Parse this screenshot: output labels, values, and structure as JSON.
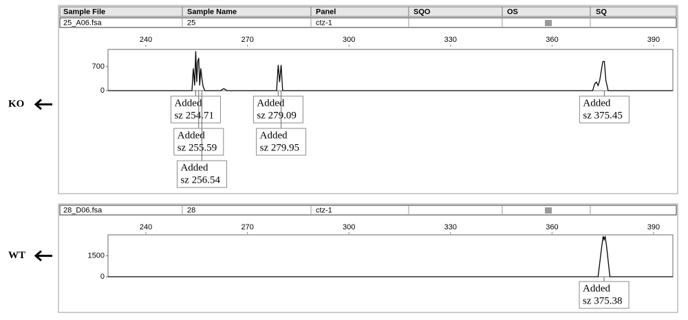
{
  "header": {
    "columns": [
      "Sample File",
      "Sample Name",
      "Panel",
      "SQO",
      "OS",
      "SQ"
    ]
  },
  "chart_data": [
    {
      "type": "line",
      "arrow_label": "KO",
      "sample_file": "25_A06.fsa",
      "sample_name": "25",
      "panel": "ctz-1",
      "xlim": [
        228.8,
        395.7
      ],
      "xticks": [
        240,
        270,
        300,
        330,
        360,
        390
      ],
      "ylim": [
        0,
        1200
      ],
      "yticks": [
        0,
        700
      ],
      "series": [
        {
          "color": "#000000",
          "x": [
            228.8,
            252,
            253.6,
            254.0,
            254.4,
            254.71,
            255.0,
            255.3,
            255.59,
            255.9,
            256.2,
            256.54,
            256.9,
            257.4,
            262,
            263,
            264,
            277.5,
            278.6,
            279.09,
            279.5,
            279.95,
            280.4,
            281.4,
            372,
            372.6,
            373.1,
            373.6,
            374.1,
            375.0,
            375.45,
            375.9,
            376.6,
            395.7
          ],
          "values": [
            0,
            0,
            0,
            650,
            150,
            1150,
            250,
            850,
            950,
            150,
            650,
            350,
            120,
            0,
            0,
            60,
            0,
            0,
            0,
            750,
            250,
            750,
            0,
            0,
            0,
            200,
            250,
            150,
            300,
            850,
            850,
            300,
            0,
            0
          ]
        }
      ],
      "annotations": [
        {
          "x": 254.71,
          "title": "Added",
          "label": "sz 254.71"
        },
        {
          "x": 255.59,
          "title": "Added",
          "label": "sz 255.59"
        },
        {
          "x": 256.54,
          "title": "Added",
          "label": "sz 256.54"
        },
        {
          "x": 279.09,
          "title": "Added",
          "label": "sz 279.09"
        },
        {
          "x": 279.95,
          "title": "Added",
          "label": "sz 279.95"
        },
        {
          "x": 375.45,
          "title": "Added",
          "label": "sz 375.45"
        }
      ]
    },
    {
      "type": "line",
      "arrow_label": "WT",
      "sample_file": "28_D06.fsa",
      "sample_name": "28",
      "panel": "ctz-1",
      "xlim": [
        228.8,
        395.7
      ],
      "xticks": [
        240,
        270,
        300,
        330,
        360,
        390
      ],
      "ylim": [
        0,
        3000
      ],
      "yticks": [
        0,
        1500
      ],
      "series": [
        {
          "color": "#000000",
          "x": [
            228.8,
            373.6,
            374.7,
            375.1,
            375.38,
            375.7,
            376.1,
            377.1,
            395.7
          ],
          "values": [
            0,
            0,
            2200,
            2900,
            2650,
            2900,
            2200,
            0,
            0
          ]
        }
      ],
      "annotations": [
        {
          "x": 375.38,
          "title": "Added",
          "label": "sz 375.38"
        }
      ]
    }
  ]
}
